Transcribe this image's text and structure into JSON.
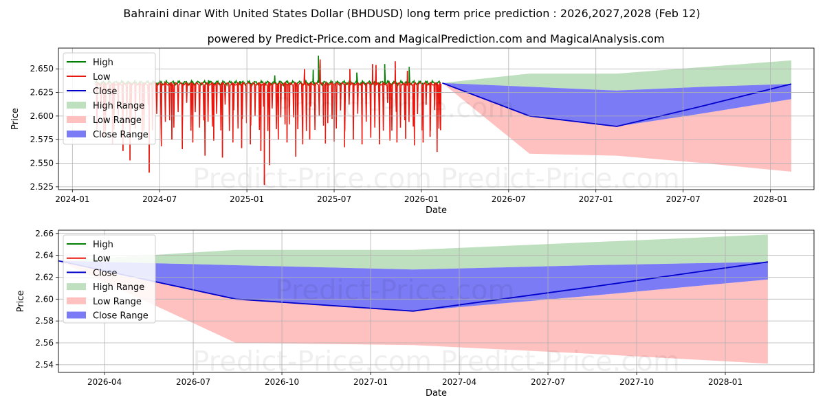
{
  "header": {
    "title": "Bahraini dinar With United States Dollar (BHDUSD) long term price prediction : 2026,2027,2028 (Feb 12)",
    "subtitle": "powered by Predict-Price.com and MagicalPrediction.com and MagicalAnalysis.com"
  },
  "watermark": "Predict-Price.com",
  "colors": {
    "high": "#008000",
    "low": "#e8160c",
    "close": "#0000cc",
    "high_range": "#bfe0bf",
    "low_range": "#ffc0c0",
    "close_range": "#7b7bf5",
    "grid": "#b0b0b0"
  },
  "legend": {
    "high": "High",
    "low": "Low",
    "close": "Close",
    "high_range": "High Range",
    "low_range": "Low Range",
    "close_range": "Close Range",
    "placement": "top-left"
  },
  "chart_data": [
    {
      "type": "line",
      "panel": "top",
      "xlabel": "Date",
      "ylabel": "Price",
      "xlim": [
        2023.92,
        2028.25
      ],
      "ylim": [
        2.522,
        2.672
      ],
      "grid": true,
      "xticks": [
        {
          "value": 2024.0,
          "label": "2024-01"
        },
        {
          "value": 2024.5,
          "label": "2024-07"
        },
        {
          "value": 2025.0,
          "label": "2025-01"
        },
        {
          "value": 2025.5,
          "label": "2025-07"
        },
        {
          "value": 2026.0,
          "label": "2026-01"
        },
        {
          "value": 2026.5,
          "label": "2026-07"
        },
        {
          "value": 2027.0,
          "label": "2027-01"
        },
        {
          "value": 2027.5,
          "label": "2027-07"
        },
        {
          "value": 2028.0,
          "label": "2028-01"
        }
      ],
      "yticks": [
        {
          "value": 2.525,
          "label": "2.525"
        },
        {
          "value": 2.55,
          "label": "2.550"
        },
        {
          "value": 2.575,
          "label": "2.575"
        },
        {
          "value": 2.6,
          "label": "2.600"
        },
        {
          "value": 2.625,
          "label": "2.625"
        },
        {
          "value": 2.65,
          "label": "2.650"
        }
      ],
      "history": {
        "start": 2024.13,
        "end": 2026.11,
        "typical_high": 2.635,
        "typical_low": 2.634,
        "high_spikes": [
          {
            "x": 2024.78,
            "y": 2.638
          },
          {
            "x": 2024.96,
            "y": 2.637
          },
          {
            "x": 2025.16,
            "y": 2.643
          },
          {
            "x": 2025.38,
            "y": 2.649
          },
          {
            "x": 2025.41,
            "y": 2.664
          },
          {
            "x": 2025.63,
            "y": 2.646
          },
          {
            "x": 2025.79,
            "y": 2.655
          },
          {
            "x": 2025.93,
            "y": 2.652
          }
        ],
        "low_dips": [
          {
            "x": 2024.18,
            "y": 2.578
          },
          {
            "x": 2024.23,
            "y": 2.57
          },
          {
            "x": 2024.29,
            "y": 2.563
          },
          {
            "x": 2024.33,
            "y": 2.553
          },
          {
            "x": 2024.4,
            "y": 2.575
          },
          {
            "x": 2024.44,
            "y": 2.54
          },
          {
            "x": 2024.51,
            "y": 2.568
          },
          {
            "x": 2024.57,
            "y": 2.575
          },
          {
            "x": 2024.63,
            "y": 2.565
          },
          {
            "x": 2024.69,
            "y": 2.572
          },
          {
            "x": 2024.76,
            "y": 2.558
          },
          {
            "x": 2024.81,
            "y": 2.574
          },
          {
            "x": 2024.86,
            "y": 2.556
          },
          {
            "x": 2024.92,
            "y": 2.572
          },
          {
            "x": 2024.97,
            "y": 2.566
          },
          {
            "x": 2025.02,
            "y": 2.57
          },
          {
            "x": 2025.08,
            "y": 2.563
          },
          {
            "x": 2025.1,
            "y": 2.527
          },
          {
            "x": 2025.13,
            "y": 2.548
          },
          {
            "x": 2025.18,
            "y": 2.575
          },
          {
            "x": 2025.23,
            "y": 2.572
          },
          {
            "x": 2025.28,
            "y": 2.557
          },
          {
            "x": 2025.32,
            "y": 2.57
          },
          {
            "x": 2025.36,
            "y": 2.575
          },
          {
            "x": 2025.45,
            "y": 2.571
          },
          {
            "x": 2025.5,
            "y": 2.573
          },
          {
            "x": 2025.56,
            "y": 2.567
          },
          {
            "x": 2025.61,
            "y": 2.575
          },
          {
            "x": 2025.66,
            "y": 2.57
          },
          {
            "x": 2025.71,
            "y": 2.577
          },
          {
            "x": 2025.76,
            "y": 2.57
          },
          {
            "x": 2025.82,
            "y": 2.574
          },
          {
            "x": 2025.86,
            "y": 2.572
          },
          {
            "x": 2025.91,
            "y": 2.576
          },
          {
            "x": 2025.96,
            "y": 2.569
          },
          {
            "x": 2026.01,
            "y": 2.572
          },
          {
            "x": 2026.05,
            "y": 2.578
          },
          {
            "x": 2026.09,
            "y": 2.562
          },
          {
            "x": 2026.11,
            "y": 2.585
          }
        ],
        "low_spikes_up": [
          {
            "x": 2025.33,
            "y": 2.65
          },
          {
            "x": 2025.42,
            "y": 2.66
          },
          {
            "x": 2025.59,
            "y": 2.65
          },
          {
            "x": 2025.72,
            "y": 2.655
          },
          {
            "x": 2025.74,
            "y": 2.654
          },
          {
            "x": 2025.85,
            "y": 2.658
          },
          {
            "x": 2025.92,
            "y": 2.648
          }
        ]
      }
    },
    {
      "type": "area",
      "panel": "bottom",
      "xlabel": "Date",
      "ylabel": "Price",
      "xlim": [
        2026.12,
        2028.25
      ],
      "ylim": [
        2.533,
        2.663
      ],
      "grid": true,
      "xticks": [
        {
          "value": 2026.25,
          "label": "2026-04"
        },
        {
          "value": 2026.5,
          "label": "2026-07"
        },
        {
          "value": 2026.75,
          "label": "2026-10"
        },
        {
          "value": 2027.0,
          "label": "2027-01"
        },
        {
          "value": 2027.25,
          "label": "2027-04"
        },
        {
          "value": 2027.5,
          "label": "2027-07"
        },
        {
          "value": 2027.75,
          "label": "2027-10"
        },
        {
          "value": 2028.0,
          "label": "2028-01"
        }
      ],
      "yticks": [
        {
          "value": 2.54,
          "label": "2.54"
        },
        {
          "value": 2.56,
          "label": "2.56"
        },
        {
          "value": 2.58,
          "label": "2.58"
        },
        {
          "value": 2.6,
          "label": "2.60"
        },
        {
          "value": 2.62,
          "label": "2.62"
        },
        {
          "value": 2.64,
          "label": "2.64"
        },
        {
          "value": 2.66,
          "label": "2.66"
        }
      ]
    }
  ],
  "forecast": {
    "x": [
      2026.12,
      2026.62,
      2027.12,
      2027.62,
      2028.12
    ],
    "close": [
      2.635,
      2.6,
      2.589,
      2.611,
      2.634
    ],
    "close_upper": [
      2.635,
      2.631,
      2.627,
      2.631,
      2.634
    ],
    "close_lower": [
      2.635,
      2.6,
      2.589,
      2.603,
      2.618
    ],
    "high_upper": [
      2.635,
      2.645,
      2.645,
      2.652,
      2.659
    ],
    "low_lower": [
      2.635,
      2.56,
      2.558,
      2.55,
      2.541
    ]
  }
}
